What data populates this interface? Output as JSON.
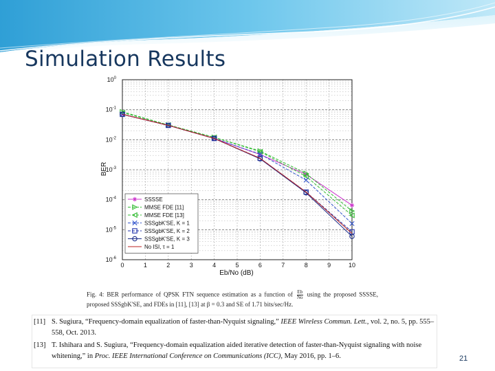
{
  "slide": {
    "title": "Simulation Results",
    "page_number": "21"
  },
  "caption": {
    "fig_label": "Fig. 4:",
    "text_before": "BER performance of QPSK FTN sequence estimation as a function of",
    "frac_num": "Eb",
    "frac_den": "No",
    "text_after": "using the proposed SSSSE, proposed SSSgbK'SE, and FDEs in [11], [13] at β = 0.3 and SE of 1.71 bits/sec/Hz."
  },
  "references": [
    {
      "num": "[11]",
      "before": "S. Sugiura, “Frequency-domain equalization of faster-than-Nyquist signaling,”",
      "venue": "IEEE Wireless Commun. Lett.",
      "after": ", vol. 2, no. 5, pp. 555–558, Oct. 2013."
    },
    {
      "num": "[13]",
      "before": "T. Ishihara and S. Sugiura, “Frequency-domain equalization aided iterative detection of faster-than-Nyquist signaling with noise whitening,” in",
      "venue": "Proc. IEEE International Conference on Communications (ICC)",
      "after": ", May 2016, pp. 1–6."
    }
  ],
  "chart_data": {
    "type": "line",
    "xlabel": "Eb/No (dB)",
    "ylabel": "BER",
    "xlim": [
      0,
      10
    ],
    "ylim": [
      1e-06,
      1
    ],
    "yscale": "log",
    "x_ticks": [
      0,
      1,
      2,
      3,
      4,
      5,
      6,
      7,
      8,
      9,
      10
    ],
    "y_tick_labels": [
      {
        "base": "10",
        "exp": "0"
      },
      {
        "base": "10",
        "exp": "-1"
      },
      {
        "base": "10",
        "exp": "-2"
      },
      {
        "base": "10",
        "exp": "-3"
      },
      {
        "base": "10",
        "exp": "-4"
      },
      {
        "base": "10",
        "exp": "-5"
      },
      {
        "base": "10",
        "exp": "-6"
      }
    ],
    "grid": true,
    "legend_position": "bottom-left",
    "x": [
      0,
      2,
      4,
      6,
      8,
      10
    ],
    "series": [
      {
        "name": "SSSSE",
        "color": "#cc33cc",
        "marker": "star",
        "dash": "solid",
        "values": [
          0.07,
          0.03,
          0.011,
          0.0032,
          0.0007,
          6.5e-05
        ]
      },
      {
        "name": "MMSE FDE [11]",
        "color": "#33bb33",
        "marker": "triangle-right",
        "dash": "dashed",
        "values": [
          0.085,
          0.031,
          0.012,
          0.0042,
          0.00075,
          4.2e-05
        ]
      },
      {
        "name": "MMSE FDE [13]",
        "color": "#33bb33",
        "marker": "triangle-left",
        "dash": "dashed",
        "values": [
          0.08,
          0.031,
          0.012,
          0.004,
          0.0006,
          3e-05
        ]
      },
      {
        "name": "SSSgbK'SE, K = 1",
        "color": "#3355cc",
        "marker": "x",
        "dash": "dashed",
        "values": [
          0.07,
          0.03,
          0.011,
          0.0033,
          0.00045,
          1.6e-05
        ]
      },
      {
        "name": "SSSgbK'SE, K = 2",
        "color": "#2233aa",
        "marker": "square",
        "dash": "dashed",
        "values": [
          0.07,
          0.03,
          0.011,
          0.0024,
          0.00018,
          8.5e-06
        ]
      },
      {
        "name": "SSSgbK'SE, K = 3",
        "color": "#1a2a88",
        "marker": "circle",
        "dash": "solid",
        "values": [
          0.07,
          0.03,
          0.011,
          0.0023,
          0.00017,
          6e-06
        ]
      },
      {
        "name": "No ISI, τ = 1",
        "color": "#bb2222",
        "marker": "none",
        "dash": "solid",
        "values": [
          0.07,
          0.03,
          0.011,
          0.0024,
          0.00018,
          7.5e-06
        ]
      }
    ]
  }
}
